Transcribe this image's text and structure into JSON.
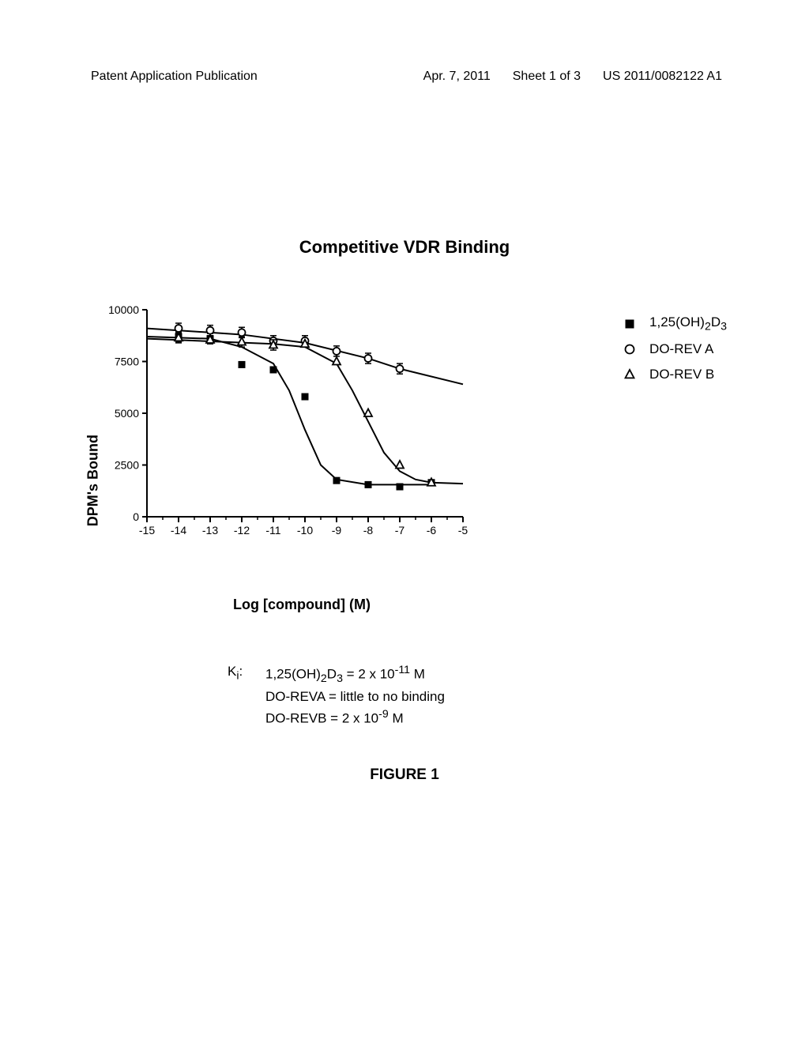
{
  "header": {
    "left": "Patent Application Publication",
    "date": "Apr. 7, 2011",
    "sheet": "Sheet 1 of 3",
    "pubno": "US 2011/0082122 A1"
  },
  "chart": {
    "type": "line-scatter",
    "title": "Competitive VDR Binding",
    "xlabel": "Log [compound] (M)",
    "ylabel": "DPM's Bound",
    "xlim": [
      -15,
      -5
    ],
    "ylim": [
      0,
      10000
    ],
    "xticks": [
      -15,
      -14,
      -13,
      -12,
      -11,
      -10,
      -9,
      -8,
      -7,
      -6,
      -5
    ],
    "yticks": [
      0,
      2500,
      5000,
      7500,
      10000
    ],
    "background_color": "#ffffff",
    "axis_color": "#000000",
    "axis_width": 2,
    "tick_fontsize": 14,
    "label_fontsize": 18,
    "title_fontsize": 22,
    "error_bar_half": 250,
    "series": [
      {
        "name": "1,25(OH)₂D₃",
        "legend_html": "1,25(OH)<sub>2</sub>D<sub>3</sub>",
        "marker": "filled-square",
        "marker_size": 9,
        "color": "#000000",
        "line_width": 2,
        "points": [
          {
            "x": -14,
            "y": 8700,
            "err": true
          },
          {
            "x": -13,
            "y": 8600,
            "err": true
          },
          {
            "x": -12,
            "y": 7350
          },
          {
            "x": -11,
            "y": 7100
          },
          {
            "x": -10,
            "y": 5800
          },
          {
            "x": -9,
            "y": 1750
          },
          {
            "x": -8,
            "y": 1550
          },
          {
            "x": -7,
            "y": 1450
          },
          {
            "x": -6,
            "y": 1650
          }
        ],
        "curve": [
          {
            "x": -15,
            "y": 8700
          },
          {
            "x": -13,
            "y": 8600
          },
          {
            "x": -12,
            "y": 8200
          },
          {
            "x": -11,
            "y": 7400
          },
          {
            "x": -10.5,
            "y": 6100
          },
          {
            "x": -10,
            "y": 4200
          },
          {
            "x": -9.5,
            "y": 2500
          },
          {
            "x": -9,
            "y": 1800
          },
          {
            "x": -8,
            "y": 1550
          },
          {
            "x": -6,
            "y": 1550
          }
        ]
      },
      {
        "name": "DO-REV A",
        "legend_html": "DO-REV A",
        "marker": "open-circle",
        "marker_size": 9,
        "color": "#000000",
        "line_width": 2,
        "points": [
          {
            "x": -14,
            "y": 9100,
            "err": true
          },
          {
            "x": -13,
            "y": 9000,
            "err": true
          },
          {
            "x": -12,
            "y": 8900,
            "err": true
          },
          {
            "x": -11,
            "y": 8500,
            "err": true
          },
          {
            "x": -10,
            "y": 8500,
            "err": true
          },
          {
            "x": -9,
            "y": 8000,
            "err": true
          },
          {
            "x": -8,
            "y": 7650,
            "err": true
          },
          {
            "x": -7,
            "y": 7150,
            "err": true
          }
        ],
        "curve": [
          {
            "x": -15,
            "y": 9100
          },
          {
            "x": -12,
            "y": 8800
          },
          {
            "x": -10,
            "y": 8400
          },
          {
            "x": -8,
            "y": 7650
          },
          {
            "x": -7,
            "y": 7150
          },
          {
            "x": -5,
            "y": 6400
          }
        ]
      },
      {
        "name": "DO-REV B",
        "legend_html": "DO-REV B",
        "marker": "open-triangle",
        "marker_size": 10,
        "color": "#000000",
        "line_width": 2,
        "points": [
          {
            "x": -14,
            "y": 8650,
            "err": true
          },
          {
            "x": -13,
            "y": 8550
          },
          {
            "x": -12,
            "y": 8450,
            "err": true
          },
          {
            "x": -11,
            "y": 8300,
            "err": true
          },
          {
            "x": -10,
            "y": 8350
          },
          {
            "x": -9,
            "y": 7500
          },
          {
            "x": -8,
            "y": 5000
          },
          {
            "x": -7,
            "y": 2500
          },
          {
            "x": -6,
            "y": 1650
          }
        ],
        "curve": [
          {
            "x": -15,
            "y": 8600
          },
          {
            "x": -11,
            "y": 8350
          },
          {
            "x": -10,
            "y": 8200
          },
          {
            "x": -9,
            "y": 7400
          },
          {
            "x": -8.5,
            "y": 6100
          },
          {
            "x": -8,
            "y": 4600
          },
          {
            "x": -7.5,
            "y": 3100
          },
          {
            "x": -7,
            "y": 2200
          },
          {
            "x": -6.5,
            "y": 1800
          },
          {
            "x": -6,
            "y": 1650
          },
          {
            "x": -5,
            "y": 1600
          }
        ]
      }
    ],
    "legend_pos": "right-top"
  },
  "ki": {
    "label": "K",
    "lines": [
      "1,25(OH)<sub>2</sub>D<sub>3</sub> = 2 x 10<sup>-11</sup> M",
      "DO-REVA = little to no binding",
      "DO-REVB = 2 x 10<sup>-9</sup> M"
    ]
  },
  "figure_label": "FIGURE 1"
}
